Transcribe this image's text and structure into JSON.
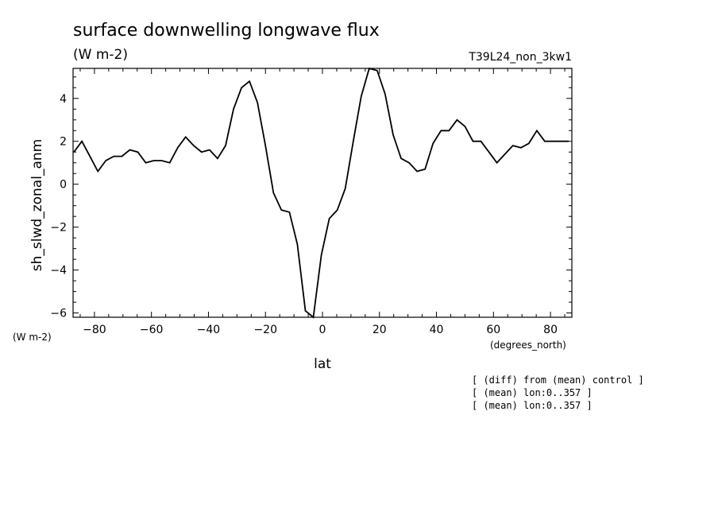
{
  "chart_data": {
    "type": "line",
    "title": "surface downwelling longwave flux",
    "subtitle": "(W m-2)",
    "run_label": "T39L24_non_3kw1",
    "xlabel": "lat",
    "xunits": "(degrees_north)",
    "ylabel": "sh_slwd_zonal_anm",
    "yunits": "(W m-2)",
    "xlim": [
      -87.5,
      87.5
    ],
    "ylim": [
      -6.2,
      5.4
    ],
    "xticks": [
      -80,
      -60,
      -40,
      -20,
      0,
      20,
      40,
      60,
      80
    ],
    "yticks": [
      -6,
      -4,
      -2,
      0,
      2,
      4
    ],
    "notes": [
      "[ (diff) from (mean) control ]",
      "[ (mean) lon:0..357 ]",
      "[ (mean) lon:0..357 ]"
    ],
    "series": [
      {
        "x": [
          -87.2,
          -84.4,
          -81.6,
          -78.8,
          -76.0,
          -73.2,
          -70.4,
          -67.6,
          -64.8,
          -62.0,
          -59.2,
          -56.4,
          -53.6,
          -50.8,
          -48.0,
          -45.2,
          -42.4,
          -39.6,
          -36.8,
          -34.0,
          -31.2,
          -28.4,
          -25.6,
          -22.8,
          -20.0,
          -17.2,
          -14.4,
          -11.6,
          -8.8,
          -6.0,
          -3.2,
          -0.4,
          2.4,
          5.2,
          8.0,
          10.8,
          13.6,
          16.4,
          19.2,
          22.0,
          24.8,
          27.6,
          30.4,
          33.2,
          36.0,
          38.8,
          41.6,
          44.4,
          47.2,
          50.0,
          52.8,
          55.6,
          58.4,
          61.2,
          64.0,
          66.8,
          69.6,
          72.4,
          75.2,
          78.0,
          80.8,
          83.6,
          86.4
        ],
        "values": [
          1.5,
          2.0,
          1.3,
          0.6,
          1.1,
          1.3,
          1.3,
          1.6,
          1.5,
          1.0,
          1.1,
          1.1,
          1.0,
          1.7,
          2.2,
          1.8,
          1.5,
          1.6,
          1.2,
          1.8,
          3.5,
          4.5,
          4.8,
          3.8,
          1.8,
          -0.4,
          -1.2,
          -1.3,
          -2.8,
          -5.9,
          -6.2,
          -3.3,
          -1.6,
          -1.2,
          -0.2,
          2.0,
          4.1,
          5.4,
          5.3,
          4.2,
          2.3,
          1.2,
          1.0,
          0.6,
          0.7,
          1.9,
          2.5,
          2.5,
          3.0,
          2.7,
          2.0,
          2.0,
          1.5,
          1.0,
          1.4,
          1.8,
          1.7,
          1.9,
          2.5,
          2.0,
          2.0,
          2.0,
          2.0
        ]
      }
    ]
  }
}
